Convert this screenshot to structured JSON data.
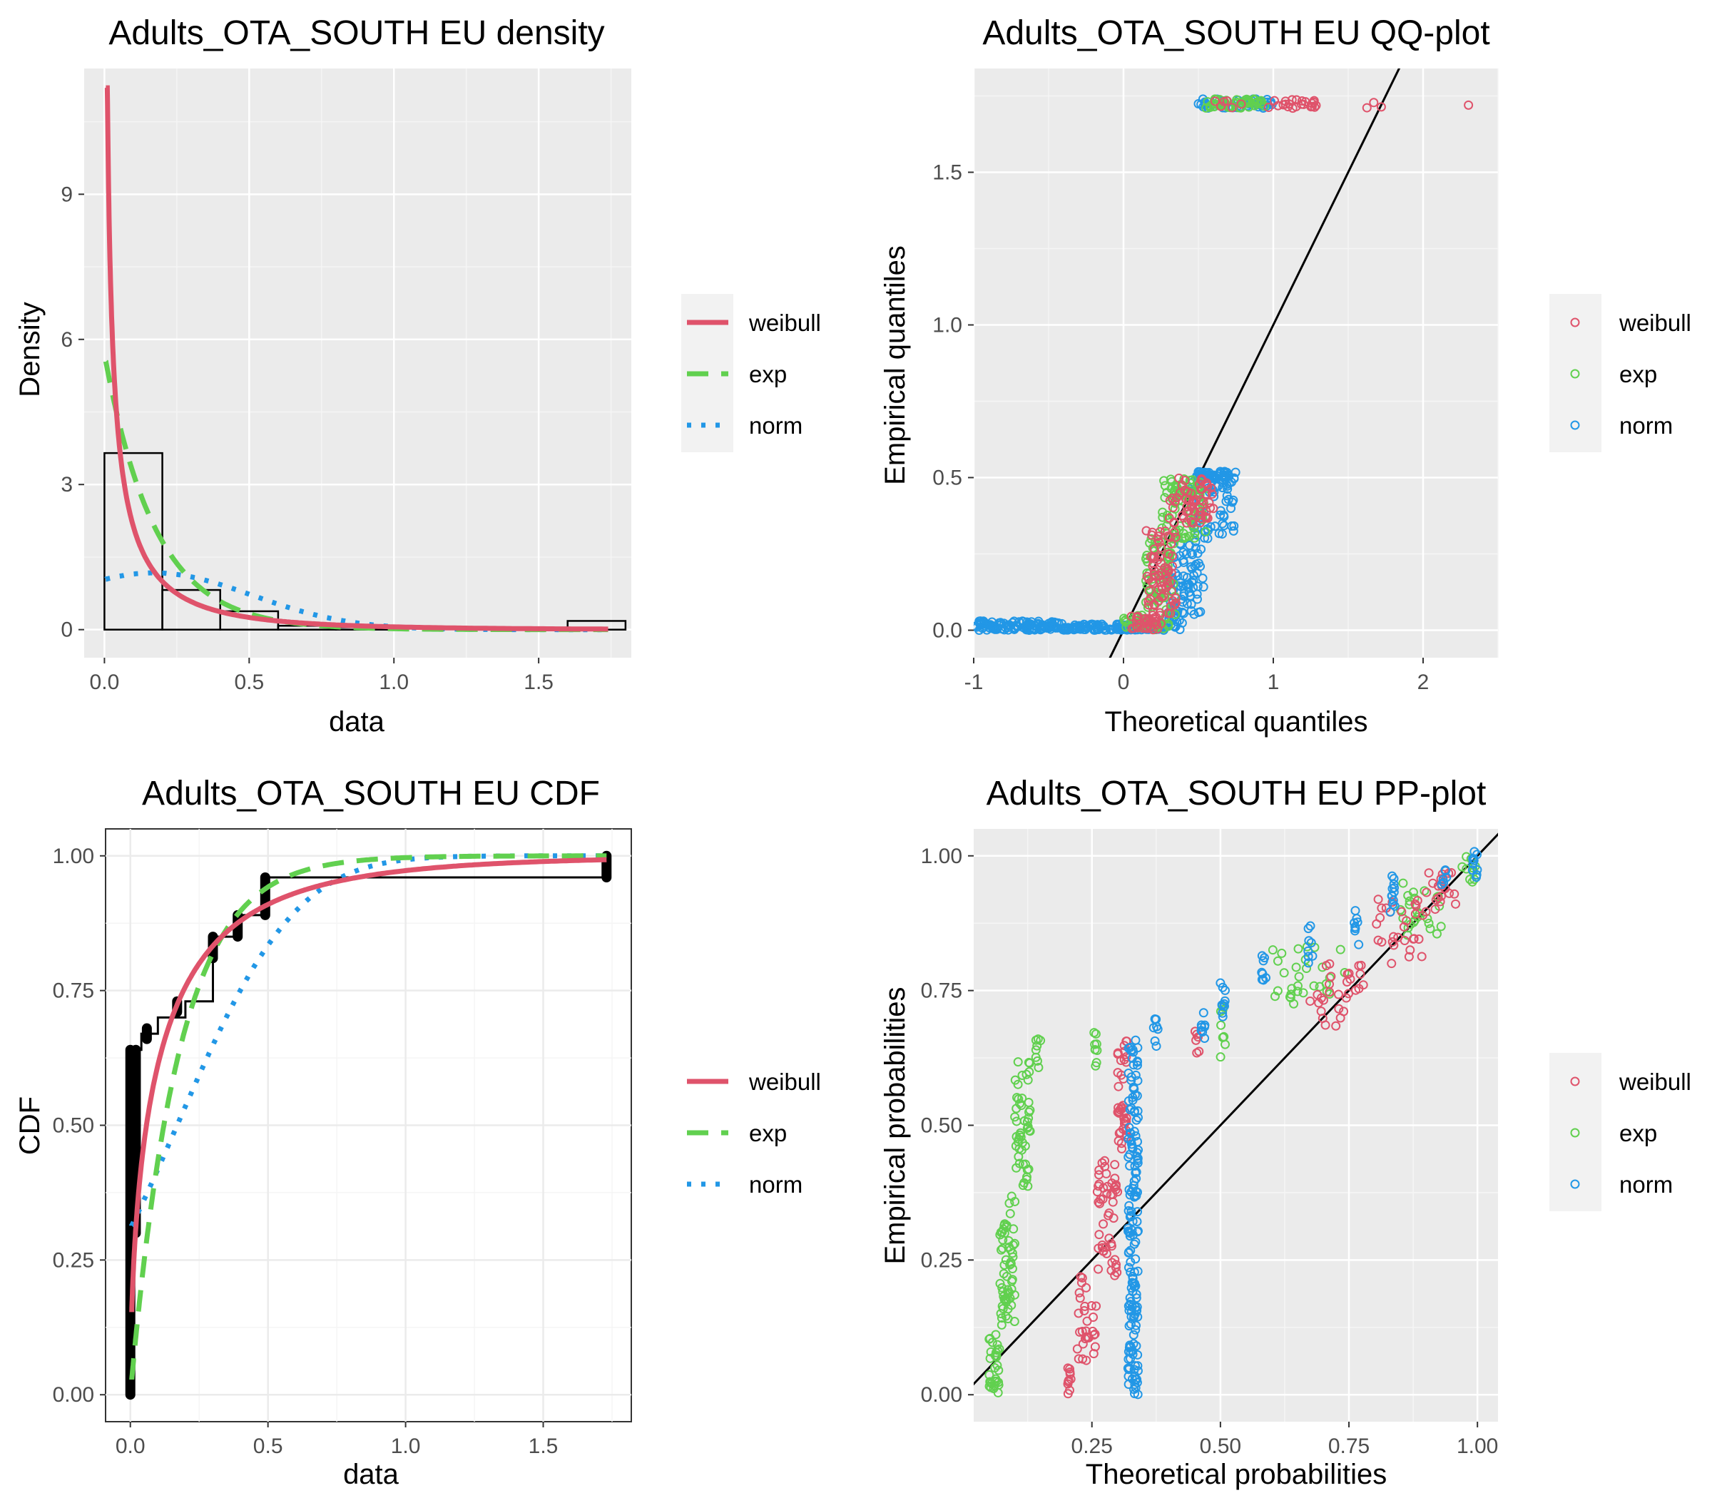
{
  "colors": {
    "weibull": "#DF536B",
    "exp": "#61D04F",
    "norm": "#2297E6",
    "panel": "#EBEBEB",
    "grid": "#FFFFFF"
  },
  "chart_data": [
    {
      "id": "density",
      "type": "histogram+line",
      "title": "Adults_OTA_SOUTH EU density",
      "xlabel": "data",
      "ylabel": "Density",
      "xlim": [
        -0.07,
        1.82
      ],
      "ylim": [
        -0.58,
        11.6
      ],
      "xticks": [
        0,
        0.5,
        1,
        1.5
      ],
      "xtick_labels": [
        "0.0",
        "0.5",
        "1.0",
        "1.5"
      ],
      "yticks": [
        0,
        3,
        6,
        9
      ],
      "ytick_labels": [
        "0",
        "3",
        "6",
        "9"
      ],
      "histogram": [
        {
          "x0": 0.0,
          "x1": 0.2,
          "density": 3.65
        },
        {
          "x0": 0.2,
          "x1": 0.4,
          "density": 0.82
        },
        {
          "x0": 0.4,
          "x1": 0.6,
          "density": 0.38
        },
        {
          "x0": 0.6,
          "x1": 0.8,
          "density": 0.08
        },
        {
          "x0": 0.8,
          "x1": 1.0,
          "density": 0.05
        },
        {
          "x0": 1.0,
          "x1": 1.2,
          "density": 0.0
        },
        {
          "x0": 1.2,
          "x1": 1.4,
          "density": 0.0
        },
        {
          "x0": 1.4,
          "x1": 1.6,
          "density": 0.0
        },
        {
          "x0": 1.6,
          "x1": 1.8,
          "density": 0.18
        }
      ],
      "series": [
        {
          "name": "weibull",
          "params": {
            "shape": 0.58,
            "scale": 0.11
          }
        },
        {
          "name": "exp",
          "params": {
            "rate": 5.7
          }
        },
        {
          "name": "norm",
          "params": {
            "mean": 0.17,
            "sd": 0.34
          }
        }
      ],
      "legend": [
        "weibull",
        "exp",
        "norm"
      ],
      "legend_position": "right"
    },
    {
      "id": "qq",
      "type": "scatter",
      "title": "Adults_OTA_SOUTH EU QQ-plot",
      "xlabel": "Theoretical quantiles",
      "ylabel": "Empirical quantiles",
      "xlim": [
        -1.0,
        2.5
      ],
      "ylim": [
        -0.09,
        1.84
      ],
      "xticks": [
        -1,
        0,
        1,
        2
      ],
      "xtick_labels": [
        "-1",
        "0",
        "1",
        "2"
      ],
      "yticks": [
        0,
        0.5,
        1.0,
        1.5
      ],
      "ytick_labels": [
        "0.0",
        "0.5",
        "1.0",
        "1.5"
      ],
      "reference_line": {
        "slope": 1,
        "intercept": 0
      },
      "legend": [
        "weibull",
        "exp",
        "norm"
      ],
      "legend_position": "right"
    },
    {
      "id": "cdf",
      "type": "line+step",
      "title": "Adults_OTA_SOUTH EU CDF",
      "xlabel": "data",
      "ylabel": "CDF",
      "xlim": [
        -0.09,
        1.82
      ],
      "ylim": [
        -0.05,
        1.05
      ],
      "xticks": [
        0,
        0.5,
        1,
        1.5
      ],
      "xtick_labels": [
        "0.0",
        "0.5",
        "1.0",
        "1.5"
      ],
      "yticks": [
        0,
        0.25,
        0.5,
        0.75,
        1.0
      ],
      "ytick_labels": [
        "0.00",
        "0.25",
        "0.50",
        "0.75",
        "1.00"
      ],
      "legend": [
        "weibull",
        "exp",
        "norm"
      ],
      "legend_position": "right"
    },
    {
      "id": "pp",
      "type": "scatter",
      "title": "Adults_OTA_SOUTH EU PP-plot",
      "xlabel": "Theoretical probabilities",
      "ylabel": "Empirical probabilities",
      "xlim": [
        0.02,
        1.04
      ],
      "ylim": [
        -0.05,
        1.05
      ],
      "xticks": [
        0.25,
        0.5,
        0.75,
        1.0
      ],
      "xtick_labels": [
        "0.25",
        "0.50",
        "0.75",
        "1.00"
      ],
      "yticks": [
        0,
        0.25,
        0.5,
        0.75,
        1.0
      ],
      "ytick_labels": [
        "0.00",
        "0.25",
        "0.50",
        "0.75",
        "1.00"
      ],
      "reference_line": {
        "slope": 1,
        "intercept": 0
      },
      "legend": [
        "weibull",
        "exp",
        "norm"
      ],
      "legend_position": "right"
    }
  ]
}
